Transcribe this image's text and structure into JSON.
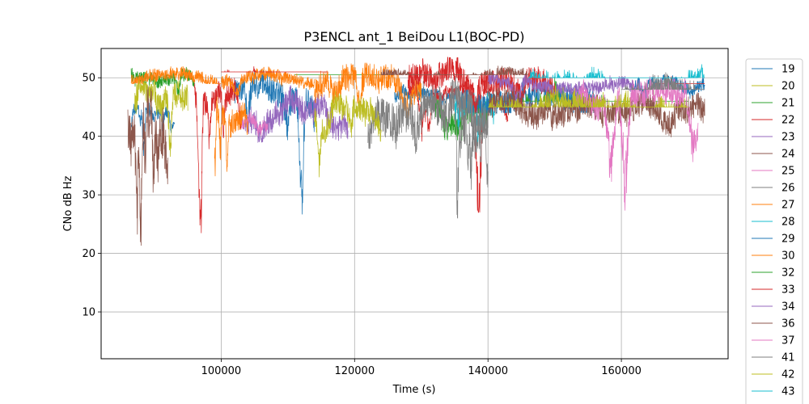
{
  "chart_data": {
    "type": "line",
    "title": "P3ENCL ant_1 BeiDou L1(BOC-PD)",
    "xlabel": "Time (s)",
    "ylabel": "CNo dB Hz",
    "xlim": [
      82000,
      176000
    ],
    "ylim": [
      2,
      55
    ],
    "xticks": [
      100000,
      120000,
      140000,
      160000
    ],
    "xtick_labels": [
      "100000",
      "120000",
      "140000",
      "160000"
    ],
    "yticks": [
      10,
      20,
      30,
      40,
      50
    ],
    "ytick_labels": [
      "10",
      "20",
      "30",
      "40",
      "50"
    ],
    "grid": true,
    "legend_position": "right, outside plot",
    "series": [
      {
        "name": "19",
        "color": "#1f77b4",
        "segments": [
          [
            86500,
            44,
            1,
            5,
            93000,
            34.5
          ],
          [
            102000,
            48,
            2,
            4,
            114000,
            26.5
          ],
          [
            126000,
            47,
            1,
            4,
            136000,
            45
          ],
          [
            162000,
            49,
            1,
            3,
            172500,
            46
          ]
        ]
      },
      {
        "name": "20",
        "color": "#bcbd22",
        "segments": [
          [
            87000,
            48,
            2,
            6,
            95000,
            36.5
          ]
        ]
      },
      {
        "name": "21",
        "color": "#2ca02c",
        "segments": [
          [
            86500,
            50,
            1,
            2,
            96000,
            47
          ],
          [
            111000,
            47,
            2,
            4,
            126000,
            50.5
          ],
          [
            132000,
            44,
            2,
            5,
            140000,
            39
          ]
        ]
      },
      {
        "name": "22",
        "color": "#d62728",
        "segments": [
          [
            96000,
            47,
            2,
            5,
            103000,
            21.5
          ],
          [
            128000,
            48,
            1,
            4,
            143000,
            27
          ]
        ]
      },
      {
        "name": "23",
        "color": "#9467bd",
        "segments": [
          [
            103000,
            44,
            2,
            5,
            119000,
            39
          ]
        ]
      },
      {
        "name": "24",
        "color": "#8c564b",
        "segments": [
          [
            86000,
            42,
            4,
            8,
            92000,
            19
          ]
        ]
      },
      {
        "name": "25",
        "color": "#e377c2",
        "segments": [
          [
            103000,
            42,
            1,
            3,
            107000,
            40
          ]
        ]
      },
      {
        "name": "26",
        "color": "#7f7f7f",
        "segments": [
          [
            135000,
            42,
            3,
            6,
            140000,
            20
          ]
        ]
      },
      {
        "name": "27",
        "color": "#ff7f0e",
        "segments": [
          [
            99000,
            43,
            2,
            5,
            104000,
            30.5
          ]
        ]
      },
      {
        "name": "28",
        "color": "#17becf",
        "segments": [
          [
            135000,
            45,
            2,
            5,
            141000,
            39
          ]
        ]
      },
      {
        "name": "29",
        "color": "#1f77b4",
        "segments": [
          [
            136000,
            47,
            2,
            4,
            156000,
            44
          ]
        ]
      },
      {
        "name": "30",
        "color": "#ff7f0e",
        "segments": [
          [
            86500,
            50,
            1,
            2,
            100000,
            49
          ],
          [
            100000,
            50,
            1,
            2,
            114000,
            47
          ],
          [
            114000,
            49,
            2,
            4,
            130000,
            42
          ]
        ]
      },
      {
        "name": "32",
        "color": "#2ca02c",
        "segments": [
          [
            140000,
            43,
            2,
            4,
            170000,
            46
          ]
        ]
      },
      {
        "name": "33",
        "color": "#d62728",
        "segments": [
          [
            100000,
            49,
            1,
            3,
            116000,
            51
          ],
          [
            128000,
            50,
            2,
            4,
            150000,
            44
          ],
          [
            165000,
            46,
            1,
            3,
            172500,
            49
          ]
        ]
      },
      {
        "name": "34",
        "color": "#9467bd",
        "segments": [
          [
            140000,
            49,
            1,
            3,
            162000,
            46
          ]
        ]
      },
      {
        "name": "36",
        "color": "#8c564b",
        "segments": [
          [
            124000,
            50,
            1,
            3,
            146000,
            50.5
          ],
          [
            140000,
            45,
            2,
            5,
            172500,
            39
          ]
        ]
      },
      {
        "name": "37",
        "color": "#e377c2",
        "segments": [
          [
            153000,
            47,
            2,
            4,
            171500,
            27
          ]
        ]
      },
      {
        "name": "41",
        "color": "#7f7f7f",
        "segments": [
          [
            122000,
            45,
            3,
            6,
            140000,
            37
          ],
          [
            160000,
            47,
            2,
            4,
            172500,
            48
          ]
        ]
      },
      {
        "name": "42",
        "color": "#bcbd22",
        "segments": [
          [
            114000,
            44,
            2,
            5,
            124000,
            33
          ],
          [
            140000,
            44,
            2,
            4,
            170000,
            45
          ]
        ]
      },
      {
        "name": "43",
        "color": "#17becf",
        "segments": [
          [
            146000,
            48,
            2,
            4,
            172500,
            50
          ]
        ]
      }
    ]
  }
}
